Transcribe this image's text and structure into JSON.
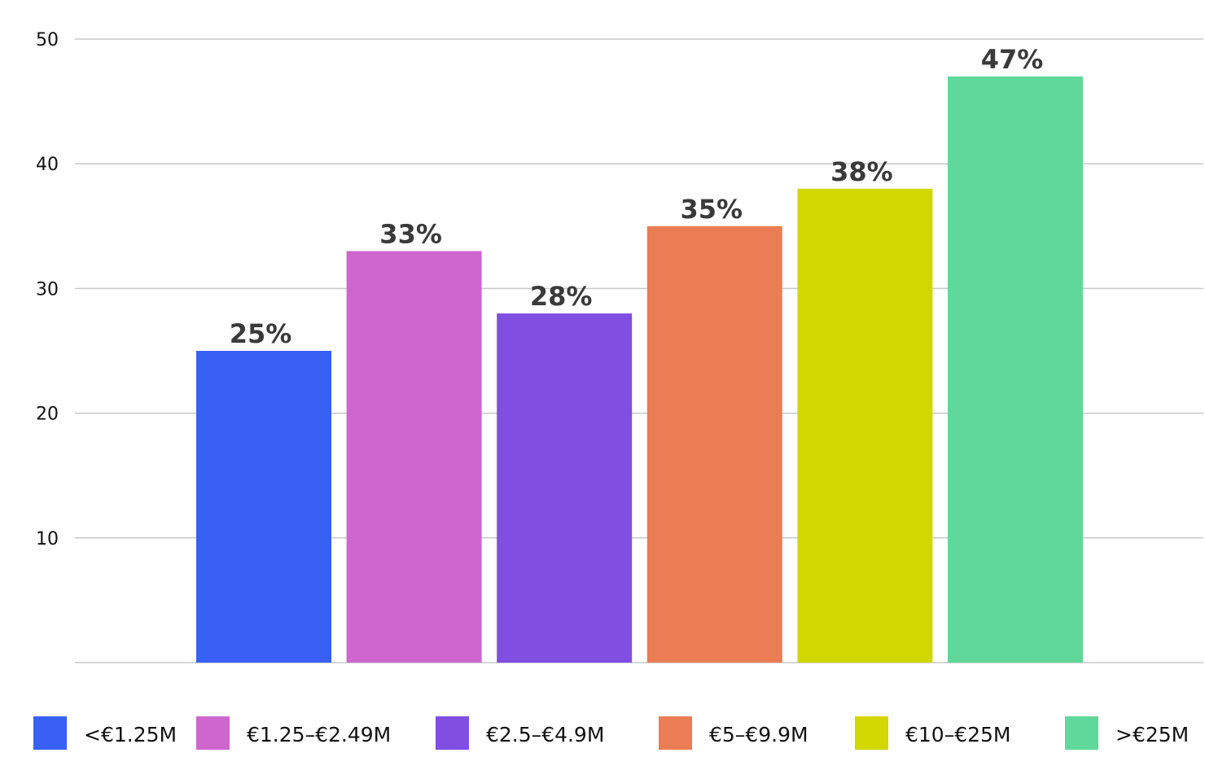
{
  "chart_data": {
    "type": "bar",
    "title": "",
    "xlabel": "",
    "ylabel": "",
    "ylim": [
      0,
      50
    ],
    "yticks": [
      10,
      20,
      30,
      40,
      50
    ],
    "grid": true,
    "legend_position": "bottom",
    "categories": [
      "<€1.25M",
      "€1.25–€2.49M",
      "€2.5–€4.9M",
      "€5–€9.9M",
      "€10–€25M",
      ">€25M"
    ],
    "values": [
      25,
      33,
      28,
      35,
      38,
      47
    ],
    "data_labels": [
      "25%",
      "33%",
      "28%",
      "35%",
      "38%",
      "47%"
    ],
    "colors": [
      "#3960F5",
      "#CE66CE",
      "#804EE0",
      "#EB7D55",
      "#D2D700",
      "#5FD899"
    ]
  }
}
